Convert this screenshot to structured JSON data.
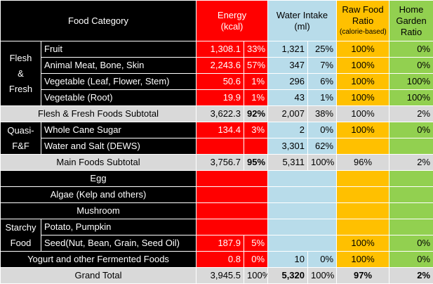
{
  "header": {
    "category": "Food Category",
    "energy": "Energy",
    "energy_unit": "(kcal)",
    "water": "Water Intake",
    "water_unit": "(ml)",
    "raw_line1": "Raw Food",
    "raw_line2": "Ratio",
    "raw_note": "(calorie-based)",
    "home_line1": "Home",
    "home_line2": "Garden",
    "home_line3": "Ratio"
  },
  "groups": {
    "flesh_l1": "Flesh",
    "flesh_l2": "&",
    "flesh_l3": "Fresh",
    "quasi_l1": "Quasi-",
    "quasi_l2": "F&F",
    "starchy_l1": "Starchy",
    "starchy_l2": "Food"
  },
  "rows": {
    "fruit": {
      "label": "Fruit",
      "kcal": "1,308.1",
      "kcal_pct": "33%",
      "water": "1,321",
      "water_pct": "25%",
      "raw": "100%",
      "home": "0%"
    },
    "meat": {
      "label": "Animal Meat, Bone, Skin",
      "kcal": "2,243.6",
      "kcal_pct": "57%",
      "water": "347",
      "water_pct": "7%",
      "raw": "100%",
      "home": "0%"
    },
    "veg_leaf": {
      "label": "Vegetable (Leaf, Flower, Stem)",
      "kcal": "50.6",
      "kcal_pct": "1%",
      "water": "296",
      "water_pct": "6%",
      "raw": "100%",
      "home": "100%"
    },
    "veg_root": {
      "label": "Vegetable (Root)",
      "kcal": "19.9",
      "kcal_pct": "1%",
      "water": "43",
      "water_pct": "1%",
      "raw": "100%",
      "home": "100%"
    },
    "flesh_subtotal": {
      "label": "Flesh & Fresh Foods Subtotal",
      "kcal": "3,622.3",
      "kcal_pct": "92%",
      "water": "2,007",
      "water_pct": "38%",
      "raw": "100%",
      "home": "2%"
    },
    "sugar": {
      "label": "Whole Cane Sugar",
      "kcal": "134.4",
      "kcal_pct": "3%",
      "water": "2",
      "water_pct": "0%",
      "raw": "100%",
      "home": "0%"
    },
    "water_salt": {
      "label": "Water and Salt (DEWS)",
      "kcal": "",
      "kcal_pct": "",
      "water": "3,301",
      "water_pct": "62%",
      "raw": "",
      "home": ""
    },
    "main_subtotal": {
      "label": "Main Foods Subtotal",
      "kcal": "3,756.7",
      "kcal_pct": "95%",
      "water": "5,311",
      "water_pct": "100%",
      "raw": "96%",
      "home": "2%"
    },
    "egg": {
      "label": "Egg"
    },
    "algae": {
      "label": "Algae (Kelp and others)"
    },
    "mushroom": {
      "label": "Mushroom"
    },
    "potato": {
      "label": "Potato, Pumpkin"
    },
    "seed": {
      "label": "Seed(Nut, Bean, Grain, Seed Oil)",
      "kcal": "187.9",
      "kcal_pct": "5%",
      "raw": "100%",
      "home": "0%"
    },
    "yogurt": {
      "label": "Yogurt and other Fermented Foods",
      "kcal": "0.8",
      "kcal_pct": "0%",
      "water": "10",
      "water_pct": "0%",
      "raw": "100%",
      "home": "0%"
    },
    "grand_total": {
      "label": "Grand Total",
      "kcal": "3,945.5",
      "kcal_pct": "100%",
      "water": "5,320",
      "water_pct": "100%",
      "raw": "97%",
      "home": "2%"
    }
  },
  "colors": {
    "black": "#000000",
    "energy_red": "#ff0000",
    "water_blue": "#b8dcea",
    "raw_orange": "#ffc000",
    "home_green": "#92d050",
    "subtotal_gray": "#d9d9d9"
  }
}
